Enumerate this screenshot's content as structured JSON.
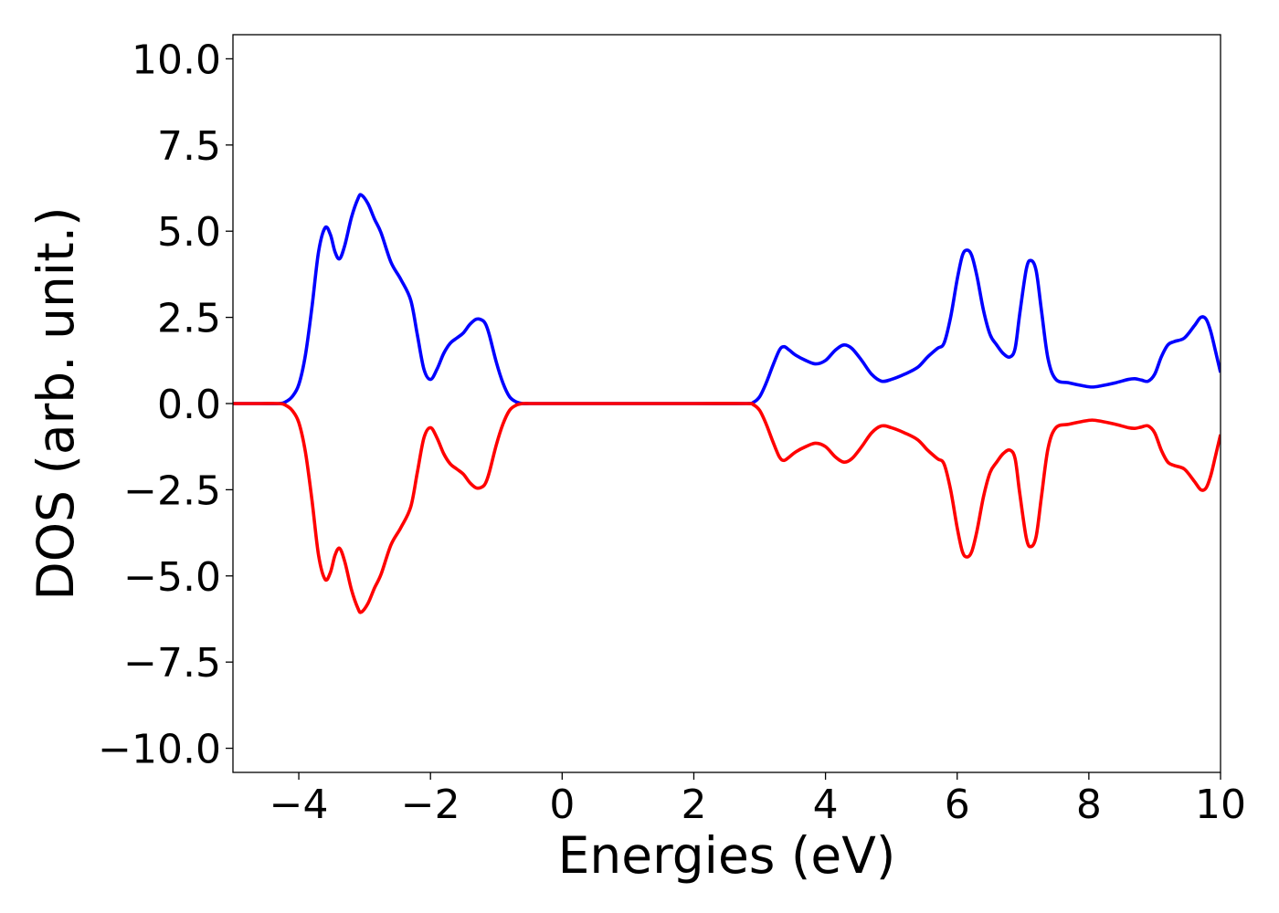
{
  "chart_data": {
    "type": "line",
    "title": "",
    "xlabel": "Energies (eV)",
    "ylabel": "DOS (arb. unit.)",
    "xlim": [
      -5,
      10
    ],
    "ylim": [
      -10.7,
      10.7
    ],
    "xticks": [
      -4,
      -2,
      0,
      2,
      4,
      6,
      8,
      10
    ],
    "xtick_labels": [
      "−4",
      "−2",
      "0",
      "2",
      "4",
      "6",
      "8",
      "10"
    ],
    "yticks": [
      10.0,
      7.5,
      5.0,
      2.5,
      0.0,
      -2.5,
      -5.0,
      -7.5,
      -10.0
    ],
    "ytick_labels": [
      "10.0",
      "7.5",
      "5.0",
      "2.5",
      "0.0",
      "−2.5",
      "−5.0",
      "−7.5",
      "−10.0"
    ],
    "grid": false,
    "legend": "none",
    "series": [
      {
        "color": "#0000ff",
        "x": [
          -5.0,
          -4.6,
          -4.3,
          -4.2,
          -4.1,
          -4.0,
          -3.9,
          -3.8,
          -3.7,
          -3.6,
          -3.52,
          -3.45,
          -3.38,
          -3.3,
          -3.2,
          -3.1,
          -3.05,
          -2.95,
          -2.85,
          -2.75,
          -2.6,
          -2.45,
          -2.3,
          -2.2,
          -2.1,
          -2.0,
          -1.9,
          -1.8,
          -1.7,
          -1.6,
          -1.5,
          -1.4,
          -1.3,
          -1.2,
          -1.15,
          -1.1,
          -1.0,
          -0.9,
          -0.8,
          -0.7,
          -0.6,
          -0.5,
          -0.3,
          0.0,
          1.0,
          2.0,
          2.8,
          2.9,
          3.0,
          3.1,
          3.2,
          3.3,
          3.37,
          3.45,
          3.55,
          3.7,
          3.85,
          4.0,
          4.15,
          4.28,
          4.4,
          4.55,
          4.7,
          4.85,
          5.0,
          5.2,
          5.4,
          5.55,
          5.7,
          5.8,
          5.9,
          6.0,
          6.08,
          6.15,
          6.22,
          6.3,
          6.4,
          6.5,
          6.6,
          6.7,
          6.8,
          6.88,
          6.95,
          7.05,
          7.12,
          7.2,
          7.28,
          7.38,
          7.5,
          7.7,
          7.9,
          8.05,
          8.2,
          8.4,
          8.6,
          8.7,
          8.8,
          8.9,
          9.0,
          9.1,
          9.2,
          9.3,
          9.45,
          9.6,
          9.7,
          9.78,
          9.85,
          9.92,
          10.0
        ],
        "y": [
          0.0,
          0.0,
          0.0,
          0.05,
          0.2,
          0.55,
          1.4,
          2.8,
          4.4,
          5.1,
          4.9,
          4.4,
          4.2,
          4.6,
          5.4,
          5.95,
          6.05,
          5.8,
          5.35,
          4.95,
          4.1,
          3.6,
          3.0,
          2.0,
          1.0,
          0.7,
          1.0,
          1.45,
          1.75,
          1.9,
          2.05,
          2.3,
          2.45,
          2.4,
          2.25,
          1.95,
          1.2,
          0.6,
          0.2,
          0.05,
          0.0,
          0.0,
          0.0,
          0.0,
          0.0,
          0.0,
          0.0,
          0.03,
          0.2,
          0.6,
          1.1,
          1.55,
          1.65,
          1.55,
          1.4,
          1.25,
          1.15,
          1.25,
          1.55,
          1.7,
          1.6,
          1.25,
          0.85,
          0.65,
          0.7,
          0.85,
          1.05,
          1.35,
          1.6,
          1.75,
          2.5,
          3.6,
          4.3,
          4.45,
          4.3,
          3.7,
          2.7,
          2.0,
          1.7,
          1.45,
          1.35,
          1.6,
          2.6,
          3.9,
          4.15,
          3.85,
          2.7,
          1.3,
          0.7,
          0.6,
          0.52,
          0.48,
          0.52,
          0.6,
          0.7,
          0.72,
          0.68,
          0.65,
          0.85,
          1.35,
          1.7,
          1.8,
          1.9,
          2.25,
          2.5,
          2.45,
          2.1,
          1.55,
          0.9
        ]
      },
      {
        "color": "#ff0000",
        "x": [
          -5.0,
          -4.6,
          -4.3,
          -4.2,
          -4.1,
          -4.0,
          -3.9,
          -3.8,
          -3.7,
          -3.6,
          -3.52,
          -3.45,
          -3.38,
          -3.3,
          -3.2,
          -3.1,
          -3.05,
          -2.95,
          -2.85,
          -2.75,
          -2.6,
          -2.45,
          -2.3,
          -2.2,
          -2.1,
          -2.0,
          -1.9,
          -1.8,
          -1.7,
          -1.6,
          -1.5,
          -1.4,
          -1.3,
          -1.2,
          -1.15,
          -1.1,
          -1.0,
          -0.9,
          -0.8,
          -0.7,
          -0.6,
          -0.5,
          -0.3,
          0.0,
          1.0,
          2.0,
          2.8,
          2.9,
          3.0,
          3.1,
          3.2,
          3.3,
          3.37,
          3.45,
          3.55,
          3.7,
          3.85,
          4.0,
          4.15,
          4.28,
          4.4,
          4.55,
          4.7,
          4.85,
          5.0,
          5.2,
          5.4,
          5.55,
          5.7,
          5.8,
          5.9,
          6.0,
          6.08,
          6.15,
          6.22,
          6.3,
          6.4,
          6.5,
          6.6,
          6.7,
          6.8,
          6.88,
          6.95,
          7.05,
          7.12,
          7.2,
          7.28,
          7.38,
          7.5,
          7.7,
          7.9,
          8.05,
          8.2,
          8.4,
          8.6,
          8.7,
          8.8,
          8.9,
          9.0,
          9.1,
          9.2,
          9.3,
          9.45,
          9.6,
          9.7,
          9.78,
          9.85,
          9.92,
          10.0
        ],
        "y": [
          0.0,
          0.0,
          0.0,
          -0.05,
          -0.2,
          -0.55,
          -1.4,
          -2.8,
          -4.4,
          -5.1,
          -4.9,
          -4.4,
          -4.2,
          -4.6,
          -5.4,
          -5.95,
          -6.05,
          -5.8,
          -5.35,
          -4.95,
          -4.1,
          -3.6,
          -3.0,
          -2.0,
          -1.0,
          -0.7,
          -1.0,
          -1.45,
          -1.75,
          -1.9,
          -2.05,
          -2.3,
          -2.45,
          -2.4,
          -2.25,
          -1.95,
          -1.2,
          -0.6,
          -0.2,
          -0.05,
          0.0,
          0.0,
          0.0,
          0.0,
          0.0,
          0.0,
          0.0,
          -0.03,
          -0.2,
          -0.6,
          -1.1,
          -1.55,
          -1.65,
          -1.55,
          -1.4,
          -1.25,
          -1.15,
          -1.25,
          -1.55,
          -1.7,
          -1.6,
          -1.25,
          -0.85,
          -0.65,
          -0.7,
          -0.85,
          -1.05,
          -1.35,
          -1.6,
          -1.75,
          -2.5,
          -3.6,
          -4.3,
          -4.45,
          -4.3,
          -3.7,
          -2.7,
          -2.0,
          -1.7,
          -1.45,
          -1.35,
          -1.6,
          -2.6,
          -3.9,
          -4.15,
          -3.85,
          -2.7,
          -1.3,
          -0.7,
          -0.6,
          -0.52,
          -0.48,
          -0.52,
          -0.6,
          -0.7,
          -0.72,
          -0.68,
          -0.65,
          -0.85,
          -1.35,
          -1.7,
          -1.8,
          -1.9,
          -2.25,
          -2.5,
          -2.45,
          -2.1,
          -1.55,
          -0.9
        ]
      }
    ]
  }
}
